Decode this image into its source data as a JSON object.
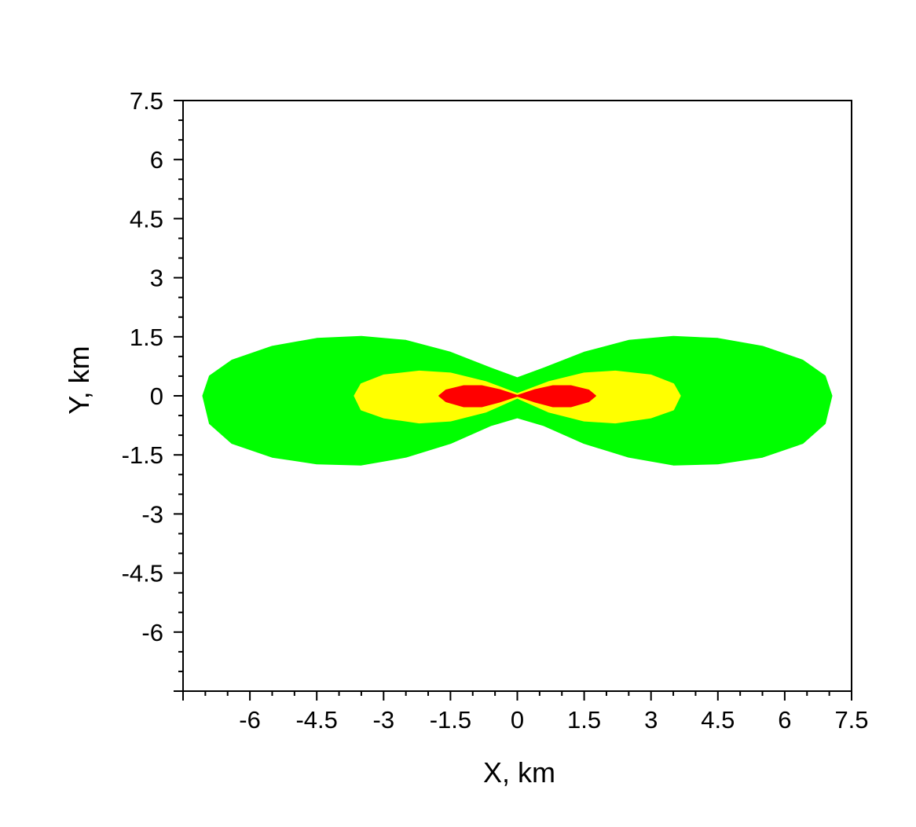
{
  "chart_data": {
    "type": "area",
    "title": "",
    "xlabel": "X, km",
    "ylabel": "Y, km",
    "xlim": [
      -7.5,
      7.5
    ],
    "ylim": [
      -7.5,
      7.5
    ],
    "x_ticks": [
      "-6",
      "-4.5",
      "-3",
      "-1.5",
      "0",
      "1.5",
      "3",
      "4.5",
      "6",
      "7.5"
    ],
    "x_tick_values": [
      -6,
      -4.5,
      -3,
      -1.5,
      0,
      1.5,
      3,
      4.5,
      6,
      7.5
    ],
    "y_ticks": [
      "7.5",
      "6",
      "4.5",
      "3",
      "1.5",
      "0",
      "-1.5",
      "-3",
      "-4.5",
      "-6"
    ],
    "y_tick_values": [
      7.5,
      6,
      4.5,
      3,
      1.5,
      0,
      -1.5,
      -3,
      -4.5,
      -6
    ],
    "grid": false,
    "legend": "none",
    "series": [
      {
        "color": "#00ff00",
        "upper": [
          [
            -7.05,
            0.0
          ],
          [
            -6.9,
            0.5
          ],
          [
            -6.4,
            0.9
          ],
          [
            -5.5,
            1.25
          ],
          [
            -4.5,
            1.45
          ],
          [
            -3.5,
            1.5
          ],
          [
            -2.5,
            1.4
          ],
          [
            -1.5,
            1.1
          ],
          [
            -0.6,
            0.7
          ],
          [
            0.0,
            0.45
          ],
          [
            0.6,
            0.7
          ],
          [
            1.5,
            1.1
          ],
          [
            2.5,
            1.4
          ],
          [
            3.5,
            1.5
          ],
          [
            4.5,
            1.45
          ],
          [
            5.5,
            1.25
          ],
          [
            6.4,
            0.9
          ],
          [
            6.9,
            0.5
          ],
          [
            7.05,
            0.0
          ]
        ],
        "lower": [
          [
            -7.05,
            0.0
          ],
          [
            -6.9,
            -0.7
          ],
          [
            -6.4,
            -1.2
          ],
          [
            -5.5,
            -1.55
          ],
          [
            -4.5,
            -1.72
          ],
          [
            -3.5,
            -1.75
          ],
          [
            -2.5,
            -1.55
          ],
          [
            -1.5,
            -1.2
          ],
          [
            -0.6,
            -0.75
          ],
          [
            0.0,
            -0.55
          ],
          [
            0.6,
            -0.75
          ],
          [
            1.5,
            -1.2
          ],
          [
            2.5,
            -1.55
          ],
          [
            3.5,
            -1.75
          ],
          [
            4.5,
            -1.72
          ],
          [
            5.5,
            -1.55
          ],
          [
            6.4,
            -1.2
          ],
          [
            6.9,
            -0.7
          ],
          [
            7.05,
            0.0
          ]
        ]
      },
      {
        "color": "#ffff00",
        "upper": [
          [
            -3.65,
            0.0
          ],
          [
            -3.5,
            0.3
          ],
          [
            -3.0,
            0.52
          ],
          [
            -2.2,
            0.62
          ],
          [
            -1.5,
            0.57
          ],
          [
            -0.7,
            0.35
          ],
          [
            0.0,
            0.05
          ],
          [
            0.7,
            0.35
          ],
          [
            1.5,
            0.57
          ],
          [
            2.2,
            0.62
          ],
          [
            3.0,
            0.52
          ],
          [
            3.5,
            0.3
          ],
          [
            3.65,
            0.0
          ]
        ],
        "lower": [
          [
            -3.65,
            0.0
          ],
          [
            -3.5,
            -0.35
          ],
          [
            -3.0,
            -0.55
          ],
          [
            -2.2,
            -0.68
          ],
          [
            -1.5,
            -0.63
          ],
          [
            -0.7,
            -0.4
          ],
          [
            0.0,
            -0.05
          ],
          [
            0.7,
            -0.4
          ],
          [
            1.5,
            -0.63
          ],
          [
            2.2,
            -0.68
          ],
          [
            3.0,
            -0.55
          ],
          [
            3.5,
            -0.35
          ],
          [
            3.65,
            0.0
          ]
        ]
      },
      {
        "color": "#ff0000",
        "upper": [
          [
            -1.75,
            0.0
          ],
          [
            -1.6,
            0.14
          ],
          [
            -1.2,
            0.25
          ],
          [
            -0.8,
            0.25
          ],
          [
            -0.4,
            0.15
          ],
          [
            0.0,
            0.0
          ],
          [
            0.4,
            0.15
          ],
          [
            0.8,
            0.25
          ],
          [
            1.2,
            0.25
          ],
          [
            1.6,
            0.14
          ],
          [
            1.75,
            0.0
          ]
        ],
        "lower": [
          [
            -1.75,
            0.0
          ],
          [
            -1.6,
            -0.14
          ],
          [
            -1.2,
            -0.27
          ],
          [
            -0.8,
            -0.27
          ],
          [
            -0.4,
            -0.15
          ],
          [
            0.0,
            0.0
          ],
          [
            0.4,
            -0.15
          ],
          [
            0.8,
            -0.27
          ],
          [
            1.2,
            -0.27
          ],
          [
            1.6,
            -0.14
          ],
          [
            1.75,
            0.0
          ]
        ]
      }
    ]
  }
}
